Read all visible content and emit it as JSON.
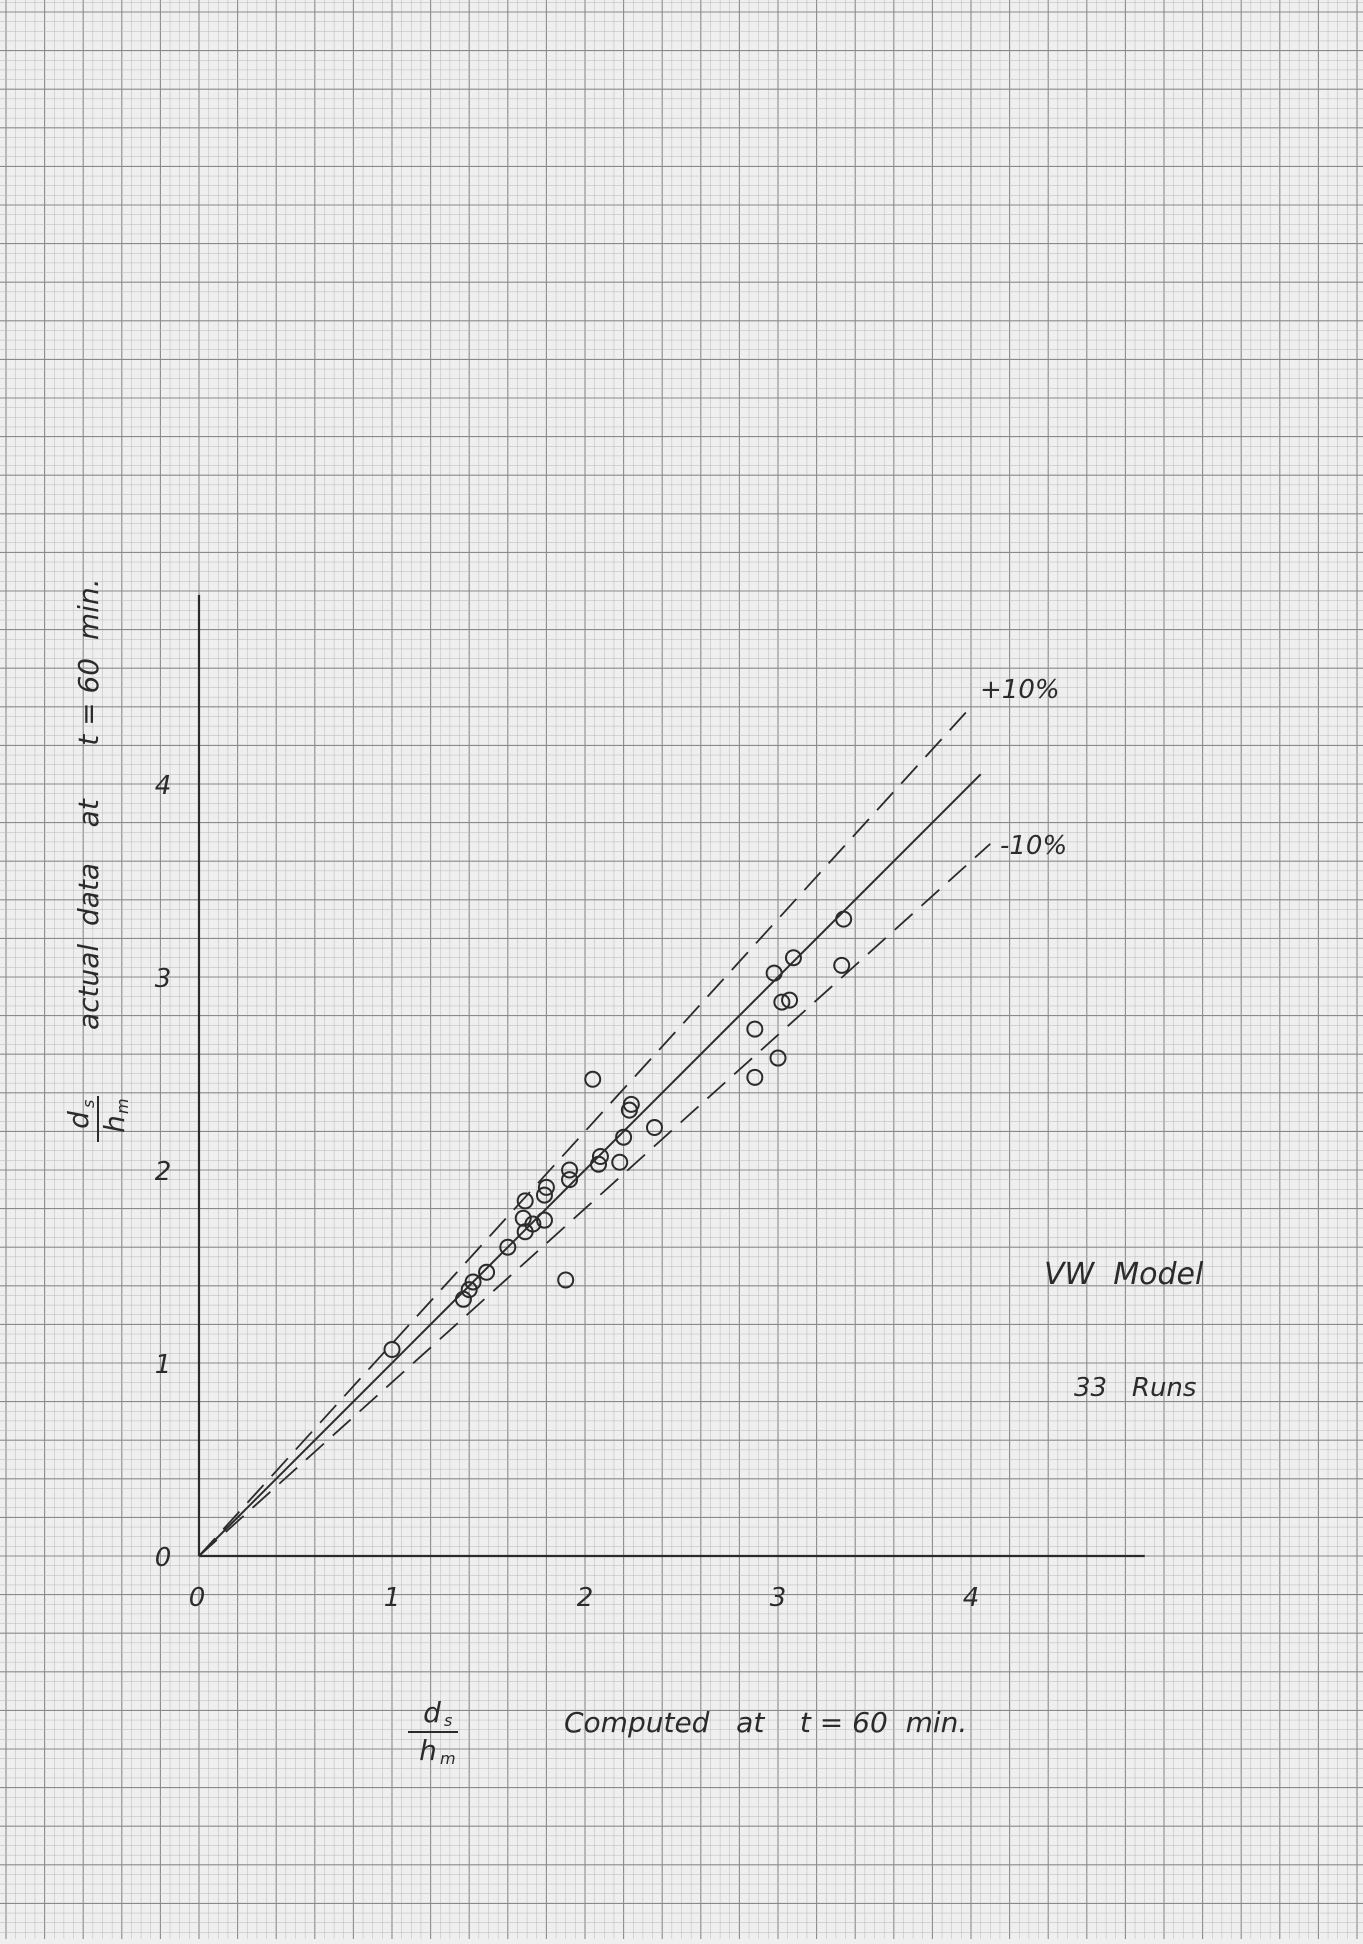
{
  "chart_data": {
    "type": "scatter",
    "title": "",
    "xlabel": {
      "fraction_top": "d",
      "fraction_top_sub": "s",
      "fraction_bottom": "h",
      "fraction_bottom_sub": "m",
      "text": "Computed   at    t = 60  min."
    },
    "ylabel": {
      "fraction_top": "d",
      "fraction_top_sub": "s",
      "fraction_bottom": "h",
      "fraction_bottom_sub": "m",
      "text": "actual  data    at      t = 60  min."
    },
    "xlim": [
      0,
      5
    ],
    "ylim": [
      0,
      5
    ],
    "x_ticks": [
      "0",
      "1",
      "2",
      "3",
      "4"
    ],
    "y_ticks": [
      "0",
      "1",
      "2",
      "3",
      "4"
    ],
    "grid": true,
    "reference_lines": [
      {
        "label": "",
        "slope": 1.0,
        "x_end": 4.05,
        "style": "solid"
      },
      {
        "label": "+10%",
        "slope": 1.1,
        "x_end": 4.0,
        "style": "dashed"
      },
      {
        "label": "-10%",
        "slope": 0.9,
        "x_end": 4.1,
        "style": "dashed"
      }
    ],
    "points": [
      {
        "x": 1.0,
        "y": 1.07
      },
      {
        "x": 1.37,
        "y": 1.33
      },
      {
        "x": 1.4,
        "y": 1.38
      },
      {
        "x": 1.42,
        "y": 1.42
      },
      {
        "x": 1.49,
        "y": 1.47
      },
      {
        "x": 1.6,
        "y": 1.6
      },
      {
        "x": 1.69,
        "y": 1.68
      },
      {
        "x": 1.68,
        "y": 1.75
      },
      {
        "x": 1.69,
        "y": 1.84
      },
      {
        "x": 1.73,
        "y": 1.72
      },
      {
        "x": 1.79,
        "y": 1.74
      },
      {
        "x": 1.79,
        "y": 1.87
      },
      {
        "x": 1.8,
        "y": 1.91
      },
      {
        "x": 1.9,
        "y": 1.43
      },
      {
        "x": 1.92,
        "y": 1.95
      },
      {
        "x": 1.92,
        "y": 2.0
      },
      {
        "x": 2.04,
        "y": 2.47
      },
      {
        "x": 2.07,
        "y": 2.03
      },
      {
        "x": 2.08,
        "y": 2.07
      },
      {
        "x": 2.18,
        "y": 2.04
      },
      {
        "x": 2.2,
        "y": 2.17
      },
      {
        "x": 2.23,
        "y": 2.31
      },
      {
        "x": 2.24,
        "y": 2.34
      },
      {
        "x": 2.36,
        "y": 2.22
      },
      {
        "x": 2.88,
        "y": 2.48
      },
      {
        "x": 2.88,
        "y": 2.73
      },
      {
        "x": 2.98,
        "y": 3.02
      },
      {
        "x": 3.0,
        "y": 2.58
      },
      {
        "x": 3.02,
        "y": 2.87
      },
      {
        "x": 3.06,
        "y": 2.88
      },
      {
        "x": 3.08,
        "y": 3.1
      },
      {
        "x": 3.33,
        "y": 3.06
      },
      {
        "x": 3.34,
        "y": 3.3
      }
    ],
    "annotations": {
      "model": "VW  Model",
      "runs": "33   Runs"
    },
    "colors": {
      "paper": "#efefef",
      "fine_grid": "#b9b9b9",
      "major_grid": "#8a8a8a",
      "ink": "#2b2b2b"
    }
  }
}
